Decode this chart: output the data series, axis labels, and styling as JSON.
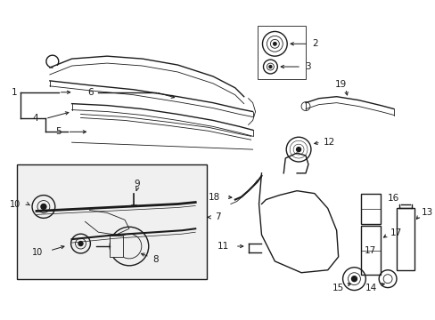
{
  "bg_color": "#ffffff",
  "line_color": "#1a1a1a",
  "figsize": [
    4.89,
    3.6
  ],
  "dpi": 100,
  "lw_main": 1.0,
  "lw_thin": 0.6,
  "label_fs": 7.5
}
